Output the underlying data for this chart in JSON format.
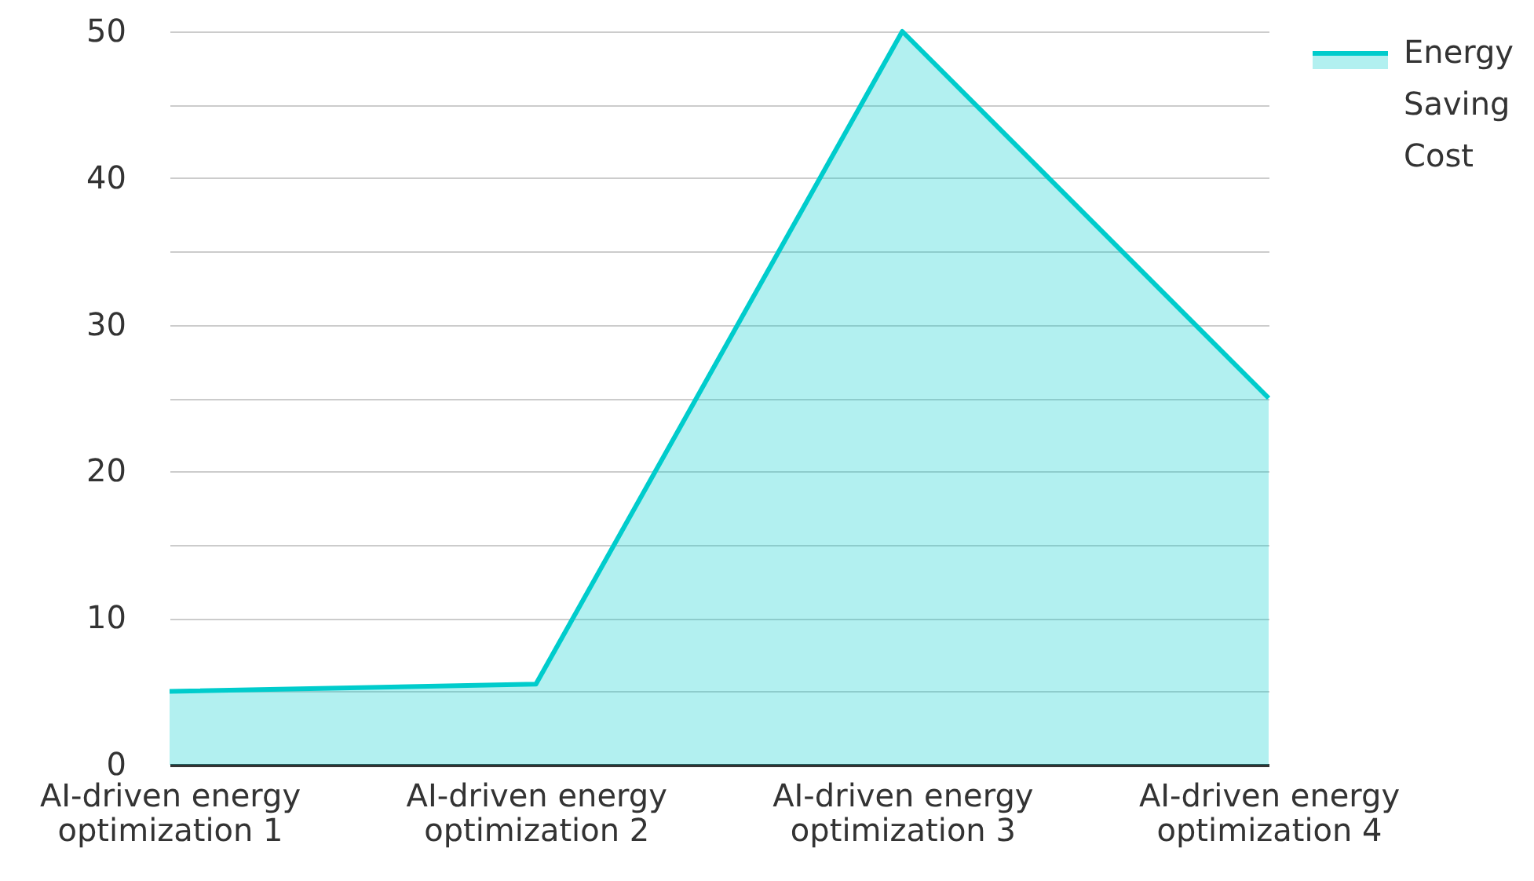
{
  "chart_data": {
    "type": "area",
    "categories": [
      "AI-driven energy optimization 1",
      "AI-driven energy optimization 2",
      "AI-driven energy optimization 3",
      "AI-driven energy optimization 4"
    ],
    "series": [
      {
        "name": "Energy Saving Cost",
        "color": "#00cccc",
        "values": [
          5,
          5.5,
          50,
          25
        ]
      }
    ],
    "ylim": [
      0,
      50
    ],
    "yticks": [
      0,
      {
        "value": 5,
        "label": null
      },
      10,
      {
        "value": 15,
        "label": null
      },
      20,
      {
        "value": 25,
        "label": null
      },
      30,
      {
        "value": 35,
        "label": null
      },
      40,
      {
        "value": 45,
        "label": null
      },
      50
    ],
    "grid": "y",
    "legend": "top right"
  }
}
